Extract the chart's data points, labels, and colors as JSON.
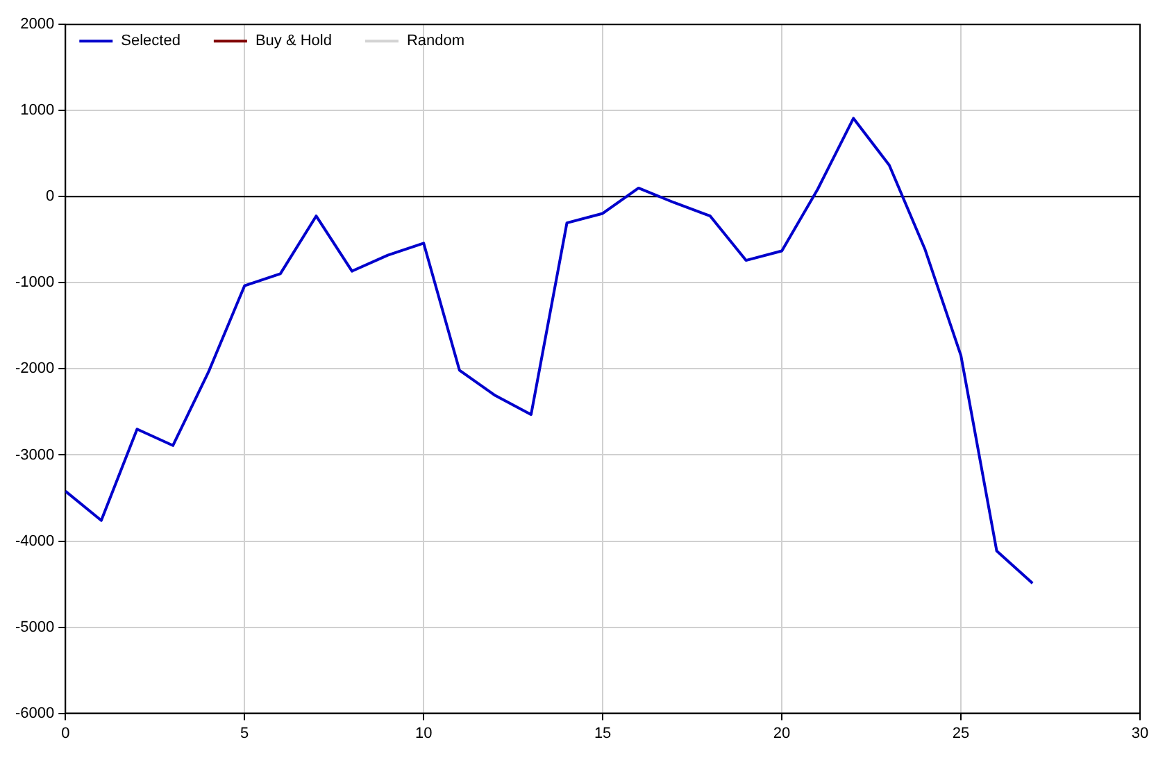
{
  "chart_data": {
    "type": "line",
    "x": [
      0,
      1,
      2,
      3,
      4,
      5,
      6,
      7,
      8,
      9,
      10,
      11,
      12,
      13,
      14,
      15,
      16,
      17,
      18,
      19,
      20,
      21,
      22,
      23,
      24,
      25,
      26,
      27
    ],
    "series": [
      {
        "name": "Selected",
        "color": "#0000cc",
        "values": [
          -3420,
          -3760,
          -2700,
          -2890,
          -2030,
          -1035,
          -895,
          -225,
          -865,
          -680,
          -540,
          -2015,
          -2310,
          -2530,
          -305,
          -195,
          100,
          -70,
          -225,
          -740,
          -630,
          85,
          910,
          365,
          -615,
          -1845,
          -4115,
          -4490
        ]
      },
      {
        "name": "Buy & Hold",
        "color": "#800000",
        "values": [
          null,
          null,
          null,
          null,
          null,
          null,
          null,
          null,
          null,
          null,
          null,
          null,
          null,
          null,
          null,
          null,
          null,
          null,
          null,
          null,
          null,
          null,
          null,
          null,
          null,
          null,
          null,
          null
        ]
      },
      {
        "name": "Random",
        "color": "#d3d3d3",
        "values": [
          null,
          null,
          null,
          null,
          null,
          null,
          null,
          null,
          null,
          null,
          null,
          null,
          null,
          null,
          null,
          null,
          null,
          null,
          null,
          null,
          null,
          null,
          null,
          null,
          null,
          null,
          null,
          null
        ]
      }
    ],
    "xlim": [
      0,
      30
    ],
    "xticks": [
      0,
      5,
      10,
      15,
      20,
      25,
      30
    ],
    "ylim": [
      -6000,
      2000
    ],
    "yticks": [
      -6000,
      -5000,
      -4000,
      -3000,
      -2000,
      -1000,
      0,
      1000,
      2000
    ],
    "ref_lines": [
      {
        "axis": "y",
        "value": 0,
        "color": "#000000"
      }
    ],
    "grid": true,
    "legend": "top left",
    "marker": "none",
    "line_style": "solid"
  }
}
